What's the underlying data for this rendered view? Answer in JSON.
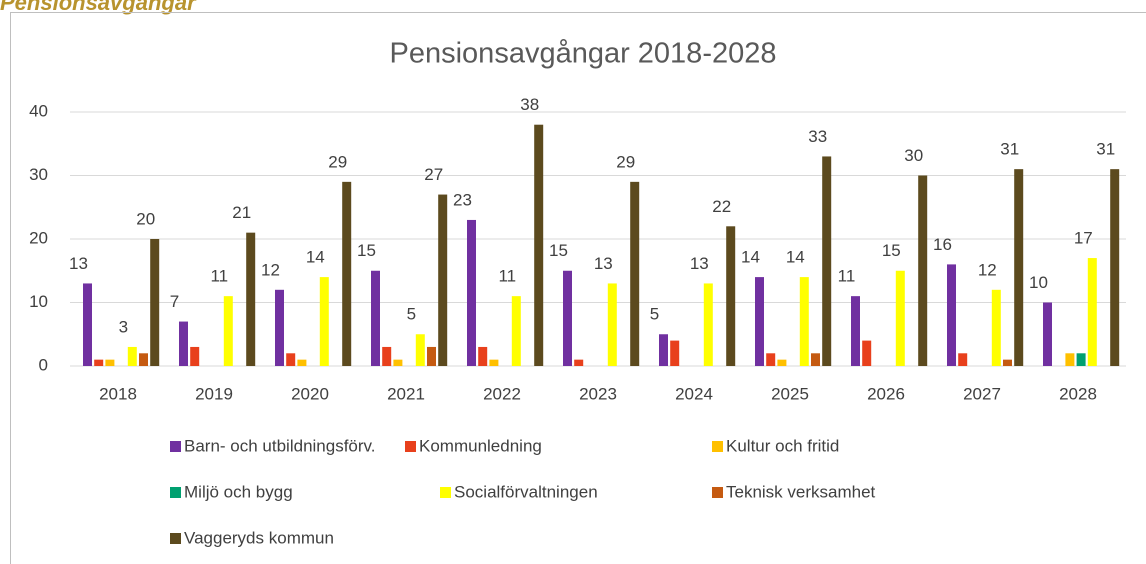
{
  "heading": "Pensionsavgångar",
  "chart_data": {
    "type": "bar",
    "title": "Pensionsavgångar 2018-2028",
    "categories": [
      "2018",
      "2019",
      "2020",
      "2021",
      "2022",
      "2023",
      "2024",
      "2025",
      "2026",
      "2027",
      "2028"
    ],
    "series": [
      {
        "name": "Barn- och utbildningsförv.",
        "color": "#7030a0",
        "show_labels": true,
        "values": [
          13,
          7,
          12,
          15,
          23,
          15,
          5,
          14,
          11,
          16,
          10
        ]
      },
      {
        "name": "Kommunledning",
        "color": "#e8401c",
        "show_labels": false,
        "values": [
          1,
          3,
          2,
          3,
          3,
          1,
          4,
          2,
          4,
          2,
          0
        ]
      },
      {
        "name": "Kultur och fritid",
        "color": "#ffc000",
        "show_labels": false,
        "values": [
          1,
          0,
          1,
          1,
          1,
          0,
          0,
          1,
          0,
          0,
          2
        ]
      },
      {
        "name": "Miljö och bygg",
        "color": "#00a070",
        "show_labels": false,
        "values": [
          0,
          0,
          0,
          0,
          0,
          0,
          0,
          0,
          0,
          0,
          2
        ]
      },
      {
        "name": "Socialförvaltningen",
        "color": "#ffff00",
        "show_labels": true,
        "values": [
          3,
          11,
          14,
          5,
          11,
          13,
          13,
          14,
          15,
          12,
          17
        ]
      },
      {
        "name": "Teknisk verksamhet",
        "color": "#c55a11",
        "show_labels": false,
        "values": [
          2,
          0,
          0,
          3,
          0,
          0,
          0,
          2,
          0,
          1,
          0
        ]
      },
      {
        "name": "Vaggeryds kommun",
        "color": "#5c4a1e",
        "show_labels": true,
        "values": [
          20,
          21,
          29,
          27,
          38,
          29,
          22,
          33,
          30,
          31,
          31
        ]
      }
    ],
    "ylim": [
      0,
      40
    ],
    "yticks": [
      0,
      10,
      20,
      30,
      40
    ],
    "grid": true,
    "legend": "bottom"
  }
}
